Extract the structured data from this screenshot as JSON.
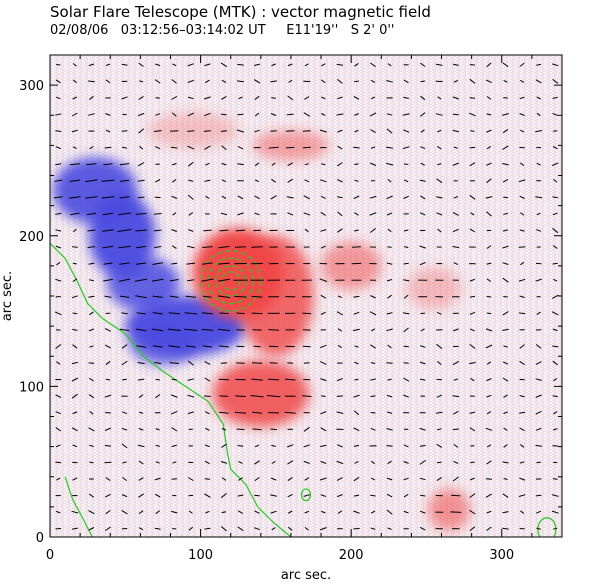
{
  "header": {
    "title": "Solar Flare Telescope (MTK) : vector magnetic field",
    "subtitle": "02/08/06   03:12:56–03:14:02 UT     E11'19''   S 2' 0''"
  },
  "colors": {
    "positive": "#f04848",
    "negative": "#4a4ae0",
    "contour": "#22cc22",
    "vector": "#000000"
  },
  "chart_data": {
    "type": "heatmap",
    "title": "vector magnetic field",
    "xlabel": "arc sec.",
    "ylabel": "arc sec.",
    "xlim": [
      0,
      340
    ],
    "ylim": [
      0,
      320
    ],
    "xticks": [
      0,
      100,
      200,
      300
    ],
    "yticks": [
      0,
      100,
      200,
      300
    ],
    "xtick_labels": [
      "0",
      "100",
      "200",
      "300"
    ],
    "ytick_labels": [
      "0",
      "100",
      "200",
      "300"
    ],
    "vector_grid_spacing_arcsec": 11,
    "blobs": [
      {
        "polarity": "negative",
        "cx": 30,
        "cy": 230,
        "rx": 28,
        "ry": 22,
        "strength": 0.9
      },
      {
        "polarity": "negative",
        "cx": 48,
        "cy": 200,
        "rx": 22,
        "ry": 28,
        "strength": 0.95
      },
      {
        "polarity": "negative",
        "cx": 62,
        "cy": 168,
        "rx": 24,
        "ry": 18,
        "strength": 0.85
      },
      {
        "polarity": "negative",
        "cx": 90,
        "cy": 140,
        "rx": 40,
        "ry": 20,
        "strength": 0.95
      },
      {
        "polarity": "negative",
        "cx": 75,
        "cy": 128,
        "rx": 22,
        "ry": 14,
        "strength": 0.7
      },
      {
        "polarity": "positive",
        "cx": 125,
        "cy": 175,
        "rx": 30,
        "ry": 30,
        "strength": 1.0
      },
      {
        "polarity": "positive",
        "cx": 150,
        "cy": 160,
        "rx": 25,
        "ry": 40,
        "strength": 0.8
      },
      {
        "polarity": "positive",
        "cx": 140,
        "cy": 95,
        "rx": 32,
        "ry": 22,
        "strength": 0.85
      },
      {
        "polarity": "positive",
        "cx": 200,
        "cy": 180,
        "rx": 20,
        "ry": 16,
        "strength": 0.5
      },
      {
        "polarity": "positive",
        "cx": 160,
        "cy": 260,
        "rx": 25,
        "ry": 10,
        "strength": 0.45
      },
      {
        "polarity": "positive",
        "cx": 265,
        "cy": 18,
        "rx": 14,
        "ry": 14,
        "strength": 0.55
      },
      {
        "polarity": "positive",
        "cx": 95,
        "cy": 270,
        "rx": 30,
        "ry": 12,
        "strength": 0.25
      },
      {
        "polarity": "positive",
        "cx": 255,
        "cy": 165,
        "rx": 18,
        "ry": 14,
        "strength": 0.3
      }
    ],
    "polarity_inversion_line": [
      [
        0,
        195
      ],
      [
        10,
        185
      ],
      [
        18,
        170
      ],
      [
        25,
        155
      ],
      [
        35,
        145
      ],
      [
        50,
        135
      ],
      [
        62,
        120
      ],
      [
        75,
        110
      ],
      [
        90,
        100
      ],
      [
        105,
        90
      ],
      [
        115,
        75
      ],
      [
        118,
        55
      ],
      [
        120,
        45
      ],
      [
        130,
        35
      ],
      [
        138,
        20
      ],
      [
        148,
        10
      ],
      [
        160,
        0
      ]
    ],
    "secondary_contour": [
      [
        10,
        40
      ],
      [
        15,
        25
      ],
      [
        22,
        12
      ],
      [
        28,
        0
      ]
    ],
    "small_loops": [
      {
        "cx": 170,
        "cy": 28,
        "r": 3
      },
      {
        "cx": 330,
        "cy": 5,
        "r": 6
      }
    ],
    "core_contours": {
      "cx": 120,
      "cy": 170,
      "radii": [
        6,
        10,
        15,
        20
      ]
    }
  }
}
